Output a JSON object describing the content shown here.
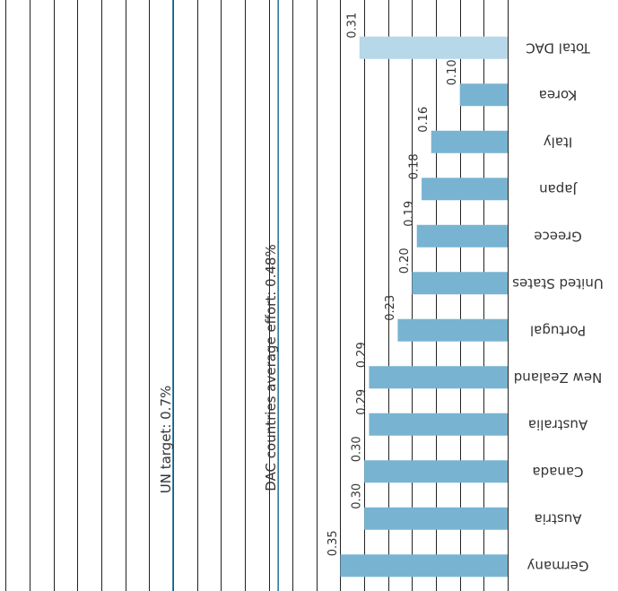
{
  "chart_data": {
    "type": "bar",
    "orientation": "horizontal",
    "rendering": "rotated 180 degrees (upside down)",
    "title": "",
    "xlabel": "",
    "ylabel": "",
    "categories": [
      "Total DAC",
      "Korea",
      "Italy",
      "Japan",
      "Greece",
      "United States",
      "Portugal",
      "New Zealand",
      "Australia",
      "Canada",
      "Austria",
      "Germany"
    ],
    "values": [
      0.31,
      0.1,
      0.16,
      0.18,
      0.19,
      0.2,
      0.23,
      0.29,
      0.29,
      0.3,
      0.3,
      0.35
    ],
    "value_labels": [
      "0.31",
      "0.10",
      "0.16",
      "0.18",
      "0.19",
      "0.20",
      "0.23",
      "0.29",
      "0.29",
      "0.30",
      "0.30",
      "0.35"
    ],
    "highlight_category": "Total DAC",
    "xlim": [
      0,
      1.05
    ],
    "grid": true,
    "reference_lines": [
      {
        "value": 0.48,
        "label": "DAC countries average effort: 0.48%"
      },
      {
        "value": 0.7,
        "label": "UN target: 0.7%"
      }
    ]
  },
  "colors": {
    "bar": "#78b4d2",
    "bar_highlight": "#b7d8e8",
    "reference_line": "#1f6f9a",
    "grid": "#222222",
    "text": "#333333"
  }
}
